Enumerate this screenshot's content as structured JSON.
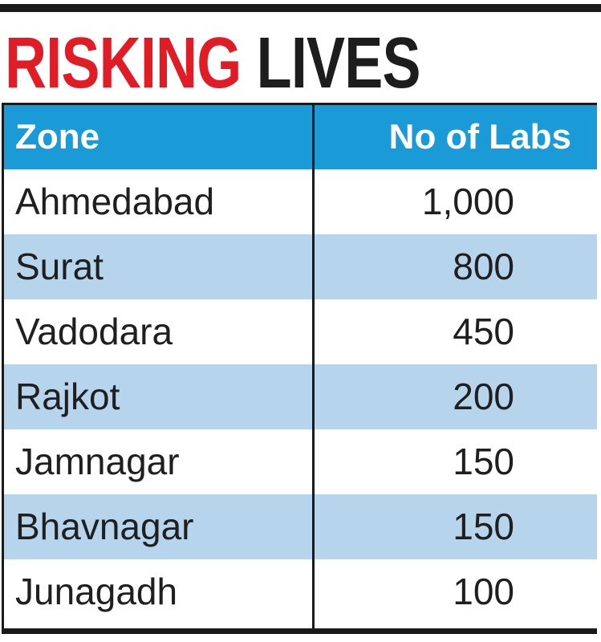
{
  "headline": {
    "part1": "RISKING",
    "part2": "LIVES"
  },
  "colors": {
    "accent_red": "#e01d27",
    "header_blue": "#1a9ad6",
    "row_shade": "#b6d5ed"
  },
  "chart_data": {
    "type": "table",
    "title": "RISKING LIVES",
    "columns": [
      "Zone",
      "No of Labs"
    ],
    "rows": [
      {
        "zone": "Ahmedabad",
        "labs": "1,000"
      },
      {
        "zone": "Surat",
        "labs": "800"
      },
      {
        "zone": "Vadodara",
        "labs": "450"
      },
      {
        "zone": "Rajkot",
        "labs": "200"
      },
      {
        "zone": "Jamnagar",
        "labs": "150"
      },
      {
        "zone": "Bhavnagar",
        "labs": "150"
      },
      {
        "zone": "Junagadh",
        "labs": "100"
      }
    ]
  }
}
